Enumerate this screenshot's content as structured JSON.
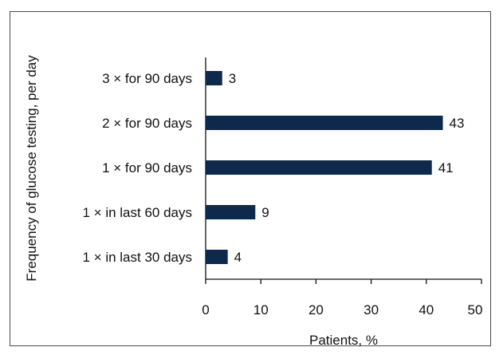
{
  "chart_data": {
    "type": "bar",
    "orientation": "horizontal",
    "categories": [
      "3 × for 90 days",
      "2 × for 90 days",
      "1 × for 90 days",
      "1 × in last 60 days",
      "1 × in last 30 days"
    ],
    "values": [
      3,
      43,
      41,
      9,
      4
    ],
    "data_labels": [
      "3",
      "43",
      "41",
      "9",
      "4"
    ],
    "xlabel": "Patients, %",
    "ylabel": "Frequency of glucose testing, per day",
    "xlim": [
      0,
      50
    ],
    "xticks": [
      0,
      10,
      20,
      30,
      40,
      50
    ],
    "grid": false,
    "bar_color": "#0d2a4c"
  }
}
